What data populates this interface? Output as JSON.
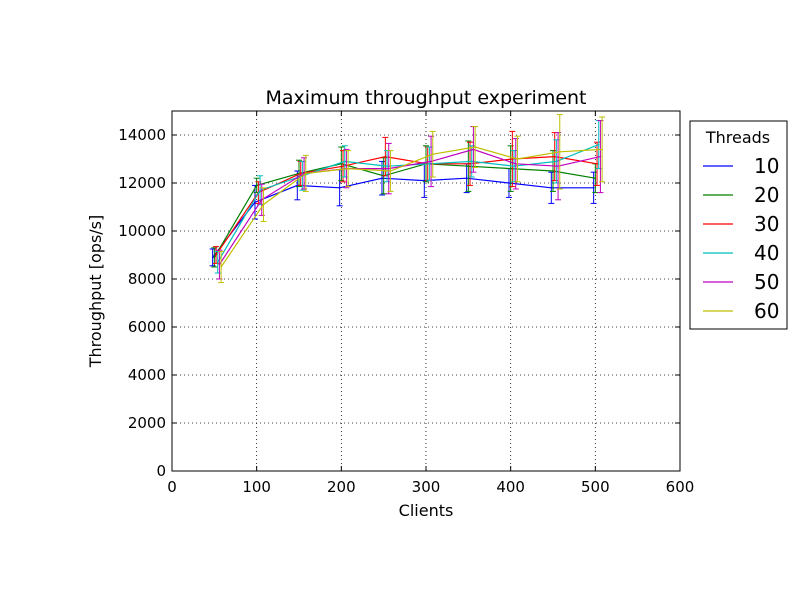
{
  "chart_data": {
    "type": "line",
    "title": "Maximum throughput experiment",
    "xlabel": "Clients",
    "ylabel": "Throughput [ops/s]",
    "xlim": [
      0,
      600
    ],
    "ylim": [
      0,
      15000
    ],
    "xticks": [
      0,
      100,
      200,
      300,
      400,
      500,
      600
    ],
    "yticks": [
      0,
      2000,
      4000,
      6000,
      8000,
      10000,
      12000,
      14000
    ],
    "grid": true,
    "error_bars": true,
    "legend": {
      "title": "Threads",
      "position": "outside-right"
    },
    "x": [
      50,
      100,
      150,
      200,
      250,
      300,
      350,
      400,
      450,
      500
    ],
    "series": [
      {
        "name": "10",
        "color": "#0000ff",
        "x_offset": -2,
        "values": [
          8900,
          11200,
          11900,
          11800,
          12200,
          12100,
          12200,
          12000,
          11800,
          11800
        ],
        "errors": [
          350,
          700,
          600,
          750,
          700,
          700,
          600,
          600,
          650,
          650
        ]
      },
      {
        "name": "20",
        "color": "#008000",
        "x_offset": 0,
        "values": [
          8900,
          11900,
          12400,
          12800,
          12300,
          12800,
          12700,
          12600,
          12500,
          12200
        ],
        "errors": [
          400,
          300,
          550,
          700,
          750,
          750,
          1050,
          950,
          850,
          600
        ]
      },
      {
        "name": "30",
        "color": "#ff0000",
        "x_offset": 2,
        "values": [
          9000,
          11600,
          12400,
          12700,
          13100,
          12800,
          12800,
          13000,
          13100,
          12800
        ],
        "errors": [
          350,
          450,
          500,
          650,
          800,
          700,
          900,
          1150,
          1000,
          900
        ]
      },
      {
        "name": "40",
        "color": "#00bfbf",
        "x_offset": 4,
        "values": [
          8700,
          11700,
          12300,
          12900,
          12700,
          12800,
          12900,
          12700,
          12900,
          13600
        ],
        "errors": [
          450,
          600,
          600,
          650,
          650,
          700,
          650,
          650,
          900,
          1000
        ]
      },
      {
        "name": "50",
        "color": "#bf00bf",
        "x_offset": 6,
        "values": [
          8600,
          11300,
          12400,
          12600,
          12600,
          12900,
          13400,
          12800,
          12700,
          13100
        ],
        "errors": [
          600,
          650,
          650,
          800,
          1050,
          1050,
          950,
          1050,
          1400,
          1500
        ]
      },
      {
        "name": "60",
        "color": "#bfbf00",
        "x_offset": 8,
        "values": [
          8500,
          11100,
          12400,
          12600,
          12500,
          13200,
          13500,
          13000,
          13300,
          13400
        ],
        "errors": [
          650,
          700,
          750,
          750,
          850,
          950,
          850,
          950,
          1550,
          1350
        ]
      }
    ]
  }
}
